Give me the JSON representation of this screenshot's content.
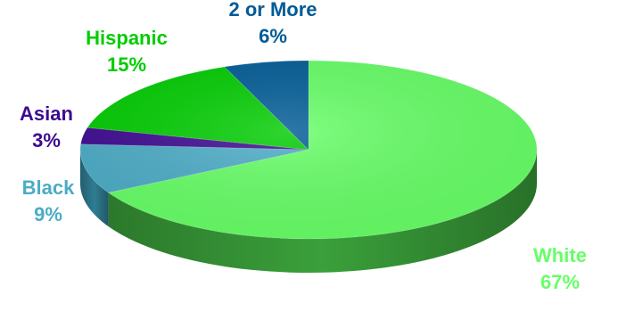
{
  "chart_data": {
    "type": "pie",
    "title": "",
    "style": "3d",
    "legend": "none",
    "slices": [
      {
        "name": "White",
        "value": 67,
        "label": "67%",
        "color": "#66ff66",
        "side_color": "#3aa03a"
      },
      {
        "name": "Black",
        "value": 9,
        "label": "9%",
        "color": "#4bacc6",
        "side_color": "#2f7d92"
      },
      {
        "name": "Asian",
        "value": 3,
        "label": "3%",
        "color": "#3d0a91",
        "side_color": "#260660"
      },
      {
        "name": "Hispanic",
        "value": 15,
        "label": "15%",
        "color": "#00cc00",
        "side_color": "#008800"
      },
      {
        "name": "2 or More",
        "value": 6,
        "label": "6%",
        "color": "#005b96",
        "side_color": "#003d66"
      }
    ]
  }
}
